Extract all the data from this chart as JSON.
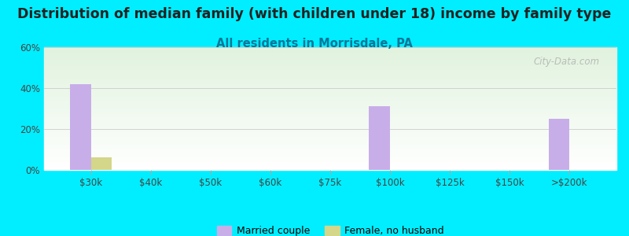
{
  "title": "Distribution of median family (with children under 18) income by family type",
  "subtitle": "All residents in Morrisdale, PA",
  "categories": [
    "$30k",
    "$40k",
    "$50k",
    "$60k",
    "$75k",
    "$100k",
    "$125k",
    "$150k",
    ">$200k"
  ],
  "married_couple": [
    42,
    0,
    0,
    0,
    0,
    31,
    0,
    0,
    25
  ],
  "female_no_husband": [
    6,
    0,
    0,
    0,
    0,
    0,
    0,
    0,
    0
  ],
  "bar_width": 0.35,
  "married_color": "#c8aee8",
  "female_color": "#d4d68a",
  "bg_color": "#00eeff",
  "ylim": [
    0,
    60
  ],
  "yticks": [
    0,
    20,
    40,
    60
  ],
  "title_fontsize": 12.5,
  "subtitle_fontsize": 10.5,
  "watermark": "City-Data.com",
  "legend_married": "Married couple",
  "legend_female": "Female, no husband"
}
